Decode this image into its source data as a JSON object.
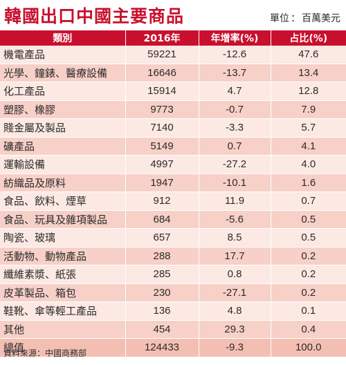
{
  "header": {
    "title": "韓國出口中國主要商品",
    "unit_label": "單位",
    "unit_sep": "：",
    "unit_value": "百萬美元"
  },
  "colors": {
    "header_red": "#c8102e",
    "row_light": "#fce9e3",
    "row_dark": "#f7d0c8"
  },
  "chart_data": {
    "type": "table",
    "columns": [
      "類別",
      "2016年",
      "年增率(%)",
      "占比(%)"
    ],
    "rows": [
      [
        "機電產品",
        "59221",
        "-12.6",
        "47.6"
      ],
      [
        "光學、鐘錶、醫療設備",
        "16646",
        "-13.7",
        "13.4"
      ],
      [
        "化工產品",
        "15914",
        "4.7",
        "12.8"
      ],
      [
        "塑膠、橡膠",
        "9773",
        "-0.7",
        "7.9"
      ],
      [
        "賤金屬及製品",
        "7140",
        "-3.3",
        "5.7"
      ],
      [
        "礦產品",
        "5149",
        "0.7",
        "4.1"
      ],
      [
        "運輸設備",
        "4997",
        "-27.2",
        "4.0"
      ],
      [
        "紡織品及原料",
        "1947",
        "-10.1",
        "1.6"
      ],
      [
        "食品、飲料、煙草",
        "912",
        "11.9",
        "0.7"
      ],
      [
        "食品、玩具及雜項製品",
        "684",
        "-5.6",
        "0.5"
      ],
      [
        "陶瓷、玻璃",
        "657",
        "8.5",
        "0.5"
      ],
      [
        "活動物、動物產品",
        "288",
        "17.7",
        "0.2"
      ],
      [
        "纖維素漿、紙張",
        "285",
        "0.8",
        "0.2"
      ],
      [
        "皮革製品、箱包",
        "230",
        "-27.1",
        "0.2"
      ],
      [
        "鞋靴、傘等輕工產品",
        "136",
        "4.8",
        "0.1"
      ],
      [
        "其他",
        "454",
        "29.3",
        "0.4"
      ],
      [
        "總值",
        "124433",
        "-9.3",
        "100.0"
      ]
    ]
  },
  "footer": {
    "source": "資料來源：中國商務部"
  }
}
